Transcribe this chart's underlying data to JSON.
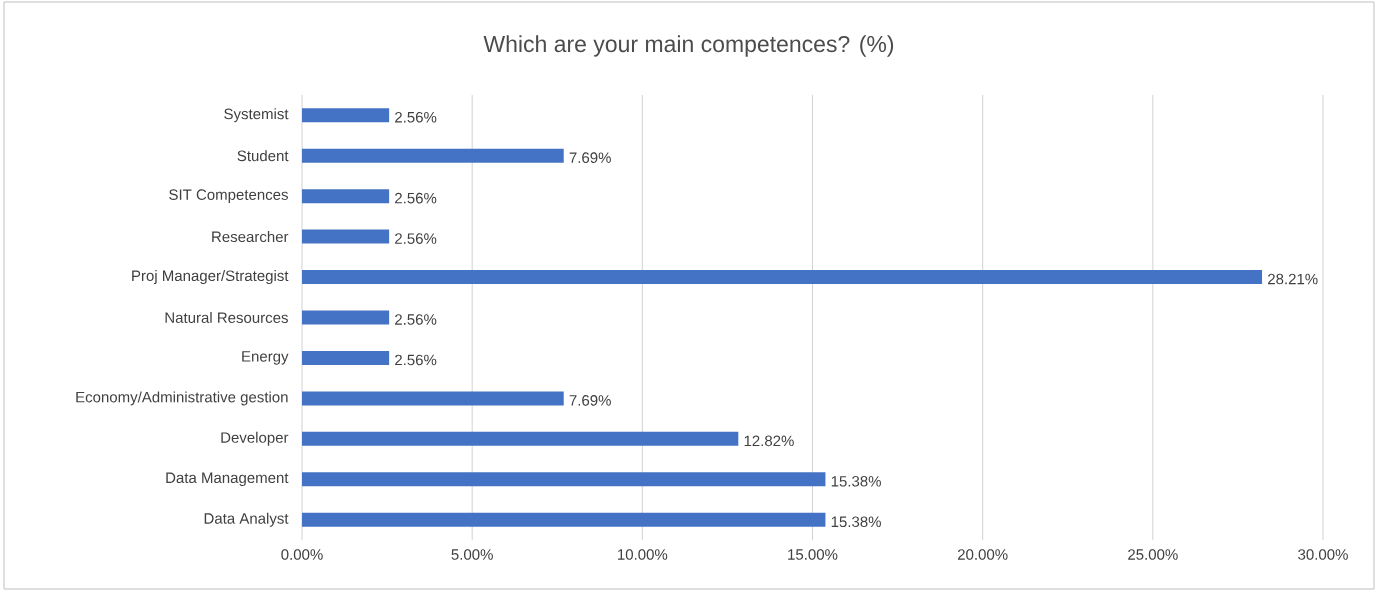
{
  "chart_data": {
    "type": "bar",
    "orientation": "horizontal",
    "title": "Which are your main competences? (%)",
    "categories": [
      "Systemist",
      "Student",
      "SIT Competences",
      "Researcher",
      "Proj Manager/Strategist",
      "Natural Resources",
      "Energy",
      "Economy/Administrative gestion",
      "Developer",
      "Data Management",
      "Data Analyst"
    ],
    "values": [
      2.56,
      7.69,
      2.56,
      2.56,
      28.21,
      2.56,
      2.56,
      7.69,
      12.82,
      15.38,
      15.38
    ],
    "value_labels": [
      "2.56%",
      "7.69%",
      "2.56%",
      "2.56%",
      "28.21%",
      "2.56%",
      "2.56%",
      "7.69%",
      "12.82%",
      "15.38%",
      "15.38%"
    ],
    "color": "#4472c4",
    "xlim": [
      0,
      30
    ],
    "xticks": [
      {
        "value": 0,
        "label": "0.00%"
      },
      {
        "value": 5,
        "label": "5.00%"
      },
      {
        "value": 10,
        "label": "10.00%"
      },
      {
        "value": 15,
        "label": "15.00%"
      },
      {
        "value": 20,
        "label": "20.00%"
      },
      {
        "value": 25,
        "label": "25.00%"
      },
      {
        "value": 30,
        "label": "30.00%"
      }
    ],
    "grid": "x"
  }
}
